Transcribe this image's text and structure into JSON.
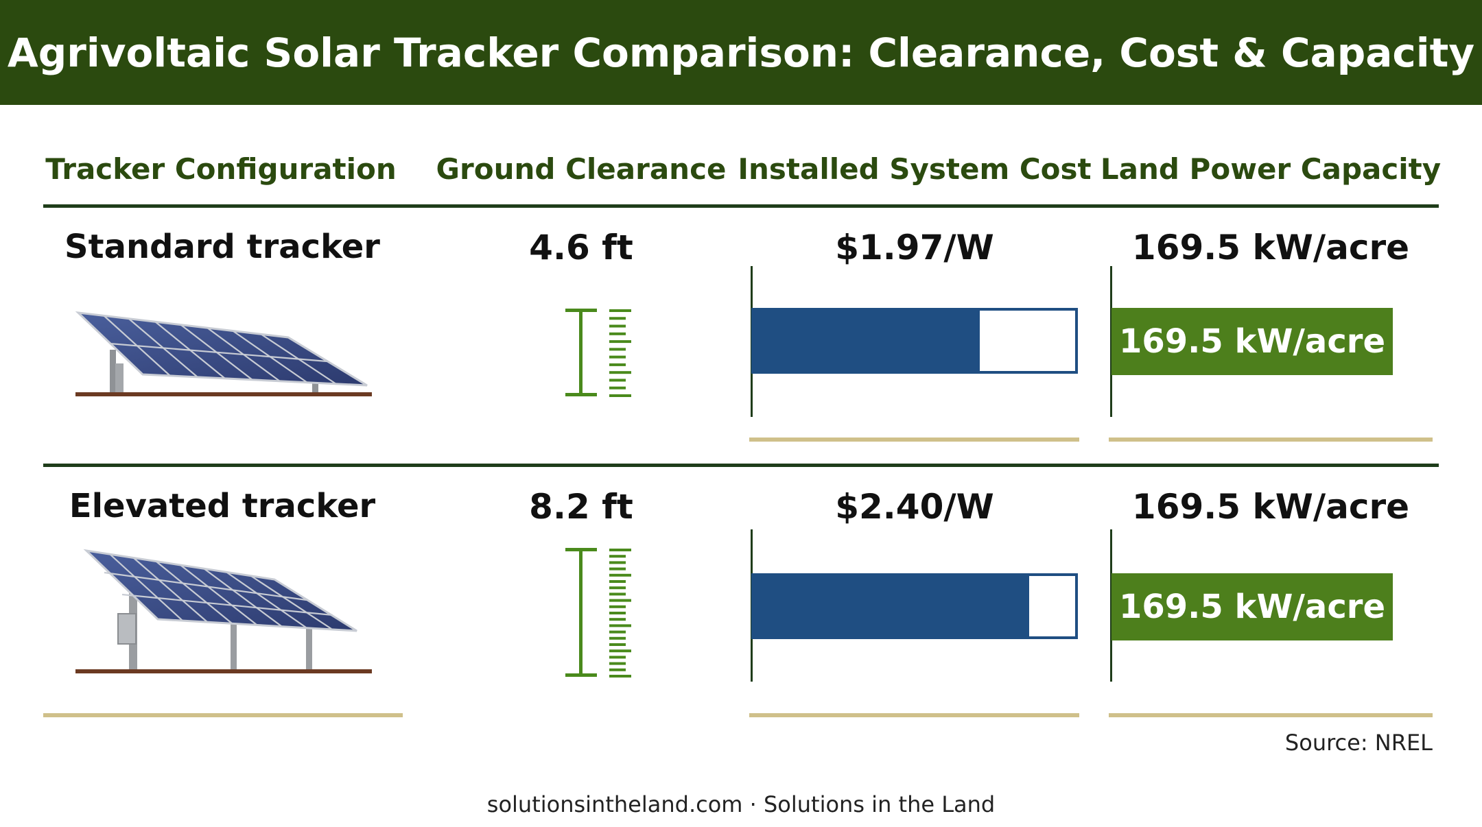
{
  "title": "Agrivoltaic Solar Tracker Comparison: Clearance, Cost & Capacity",
  "columns": [
    "Tracker Configuration",
    "Ground Clearance",
    "Installed System Cost",
    "Land Power Capacity"
  ],
  "colors": {
    "banner": "#2b4a0f",
    "header_text": "#2b4a0f",
    "rule": "#1f3d1a",
    "cost_bar": "#1f4e82",
    "capacity_bar": "#4d7f1c",
    "baseline": "#cfc08a",
    "ruler": "#4a8a1c",
    "ground": "#6b3a22"
  },
  "chart_data": {
    "type": "table",
    "rows": [
      {
        "configuration": "Standard tracker",
        "clearance_label": "4.6 ft",
        "clearance_ft": 4.6,
        "cost_label": "$1.97/W",
        "cost_per_w": 1.97,
        "capacity_label": "169.5 kW/acre",
        "capacity_kw_per_acre": 169.5
      },
      {
        "configuration": "Elevated tracker",
        "clearance_label": "8.2 ft",
        "clearance_ft": 8.2,
        "cost_label": "$2.40/W",
        "cost_per_w": 2.4,
        "capacity_label": "169.5 kW/acre",
        "capacity_kw_per_acre": 169.5
      }
    ],
    "cost_axis_max": 2.8,
    "capacity_axis_max": 169.5
  },
  "source": "Source: NREL",
  "footer": "solutionsintheland.com · Solutions in the Land"
}
